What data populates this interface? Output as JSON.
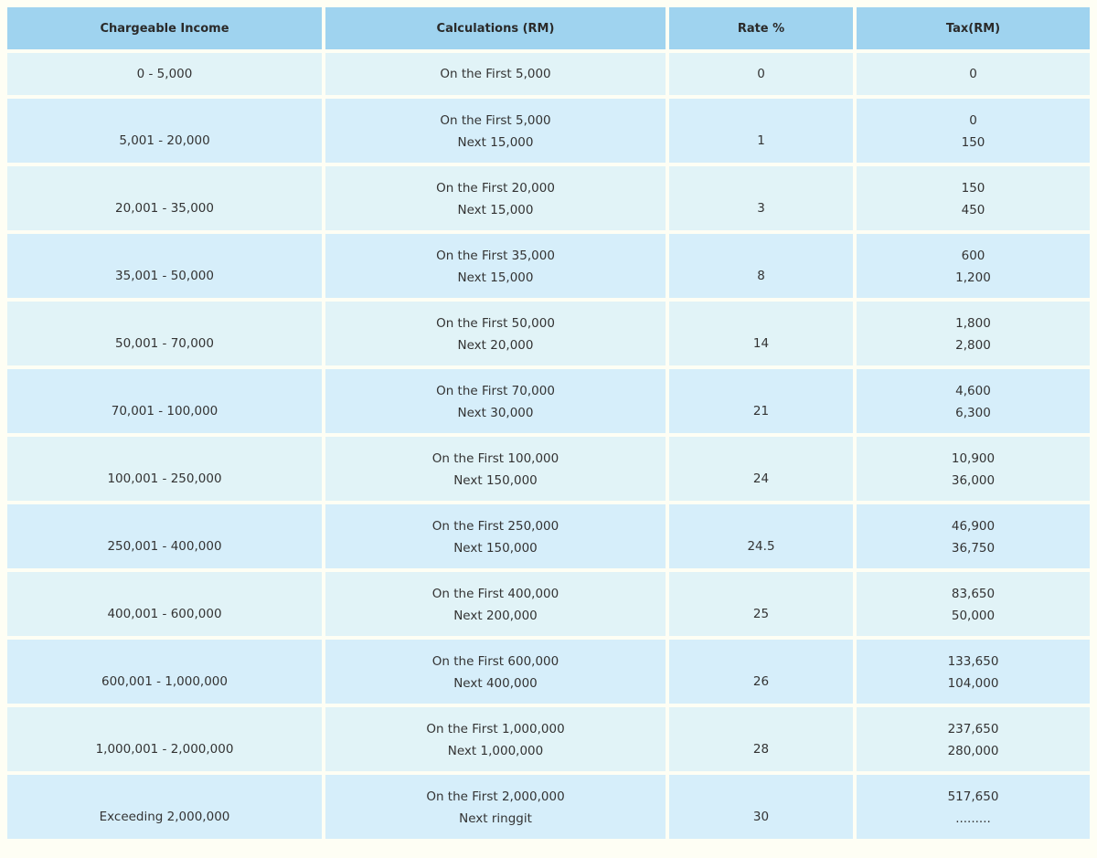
{
  "table": {
    "headers": [
      "Chargeable Income",
      "Calculations (RM)",
      "Rate %",
      "Tax(RM)"
    ],
    "rows": [
      {
        "income": "0 - 5,000",
        "calc1": "On the First 5,000",
        "calc2": "",
        "rate": "0",
        "tax1": "0",
        "tax2": ""
      },
      {
        "income": "5,001 - 20,000",
        "calc1": "On the First 5,000",
        "calc2": "Next 15,000",
        "rate": "1",
        "tax1": "0",
        "tax2": "150"
      },
      {
        "income": "20,001 - 35,000",
        "calc1": "On the First 20,000",
        "calc2": "Next 15,000",
        "rate": "3",
        "tax1": "150",
        "tax2": "450"
      },
      {
        "income": "35,001 - 50,000",
        "calc1": "On the First 35,000",
        "calc2": "Next 15,000",
        "rate": "8",
        "tax1": "600",
        "tax2": "1,200"
      },
      {
        "income": "50,001 - 70,000",
        "calc1": "On the First 50,000",
        "calc2": "Next 20,000",
        "rate": "14",
        "tax1": "1,800",
        "tax2": "2,800"
      },
      {
        "income": "70,001 - 100,000",
        "calc1": "On the First 70,000",
        "calc2": "Next 30,000",
        "rate": "21",
        "tax1": "4,600",
        "tax2": "6,300"
      },
      {
        "income": "100,001 - 250,000",
        "calc1": "On the First 100,000",
        "calc2": "Next 150,000",
        "rate": "24",
        "tax1": "10,900",
        "tax2": "36,000"
      },
      {
        "income": "250,001 - 400,000",
        "calc1": "On the First 250,000",
        "calc2": "Next 150,000",
        "rate": "24.5",
        "tax1": "46,900",
        "tax2": "36,750"
      },
      {
        "income": "400,001 - 600,000",
        "calc1": "On the First 400,000",
        "calc2": "Next 200,000",
        "rate": "25",
        "tax1": "83,650",
        "tax2": "50,000"
      },
      {
        "income": "600,001 - 1,000,000",
        "calc1": "On the First 600,000",
        "calc2": "Next 400,000",
        "rate": "26",
        "tax1": "133,650",
        "tax2": "104,000"
      },
      {
        "income": "1,000,001 - 2,000,000",
        "calc1": "On the First 1,000,000",
        "calc2": "Next 1,000,000",
        "rate": "28",
        "tax1": "237,650",
        "tax2": "280,000"
      },
      {
        "income": "Exceeding 2,000,000",
        "calc1": "On the First 2,000,000",
        "calc2": "Next ringgit",
        "rate": "30",
        "tax1": "517,650",
        "tax2": "........."
      }
    ]
  }
}
